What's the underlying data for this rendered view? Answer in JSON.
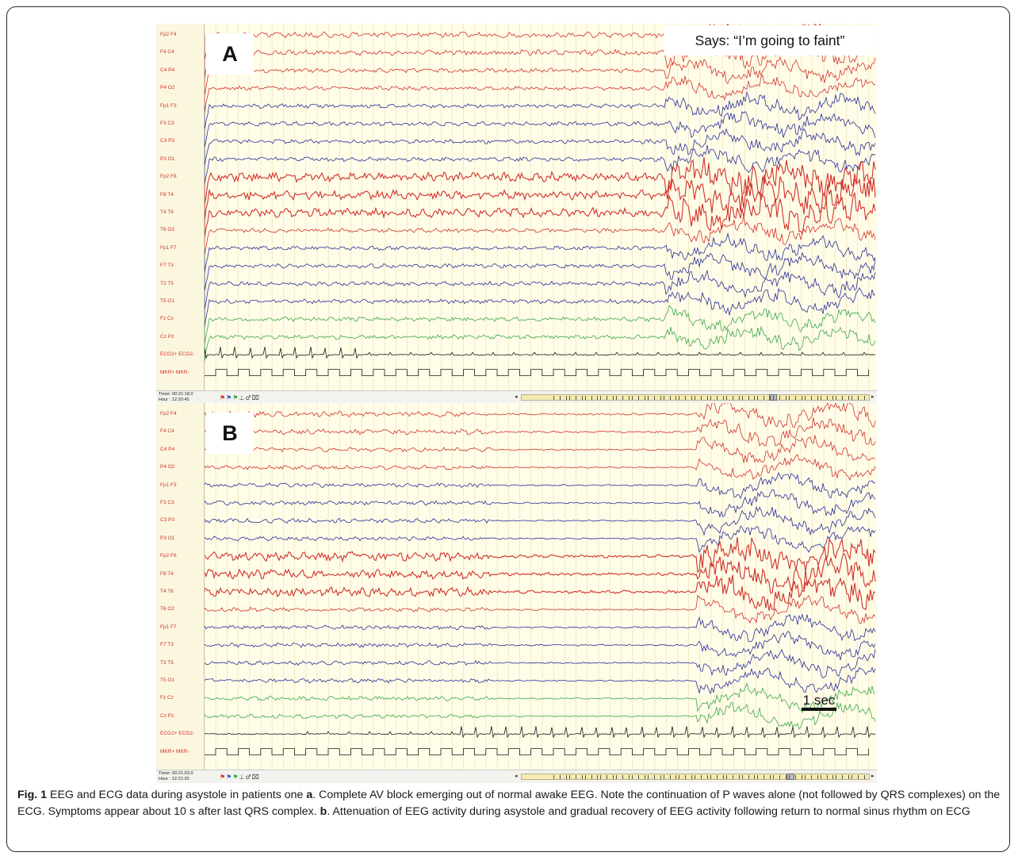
{
  "panels": [
    {
      "id": "a",
      "letter": "A",
      "annotation": "Says: “I’m going to faint”",
      "timer": "Timer: 00:21:18.0",
      "hour": "Hour   : 12:20:45",
      "scrollbar_thumb_position": 0.73,
      "channels": [
        "Fp2 F4",
        "F4 C4",
        "C4 P4",
        "P4 O2",
        "Fp1 F3",
        "F3 C3",
        "C3 P3",
        "P3 O1",
        "Fp2 F8",
        "F8 T4",
        "T4 T6",
        "T6 O2",
        "Fp1 F7",
        "F7 T3",
        "T3 T5",
        "T5 O1",
        "Fz Cz",
        "Cz Pz",
        "ECG2+ ECG2-",
        "MKR+ MKR-"
      ]
    },
    {
      "id": "b",
      "letter": "B",
      "annotation": "",
      "timer": "Timer: 00:21:53.0",
      "hour": "Hour   : 12:21:20",
      "scrollbar_thumb_position": 0.78,
      "scale_bar_label": "1 sec",
      "channels": [
        "Fp2 F4",
        "F4 C4",
        "C4 P4",
        "P4 O2",
        "Fp1 F3",
        "F3 C3",
        "C3 P3",
        "P3 O1",
        "Fp2 F8",
        "F8 T4",
        "T4 T6",
        "T6 O2",
        "Fp1 F7",
        "F7 T3",
        "T3 T5",
        "T5 O1",
        "Fz Cz",
        "Cz Pz",
        "ECG2+ ECG2-",
        "MKR+ MKR-"
      ]
    }
  ],
  "channel_colors": {
    "right_hemisphere": "#d0322c",
    "left_hemisphere": "#2a2e96",
    "midline": "#3aa84a",
    "ecg": "#1a1a1a",
    "marker": "#1a1a1a",
    "background": "#fffce8",
    "gridline": "#e8dfb0"
  },
  "icons": [
    "red-flag-icon",
    "blue-flag-icon",
    "green-flag-icon",
    "ground-icon",
    "person-icon",
    "trash-icon"
  ],
  "caption": {
    "figure_label": "Fig. 1",
    "part1": " EEG and ECG data during asystole in patients one ",
    "a_ref": "a",
    "part2": ". Complete AV block emerging out of normal awake EEG. Note the continuation of P waves alone (not followed by QRS complexes) on the ECG. Symptoms appear about 10 s after last QRS complex. ",
    "b_ref": "b",
    "part3": ". Attenuation of EEG activity during asystole and gradual recovery of EEG activity following return to normal sinus rhythm on ECG"
  }
}
